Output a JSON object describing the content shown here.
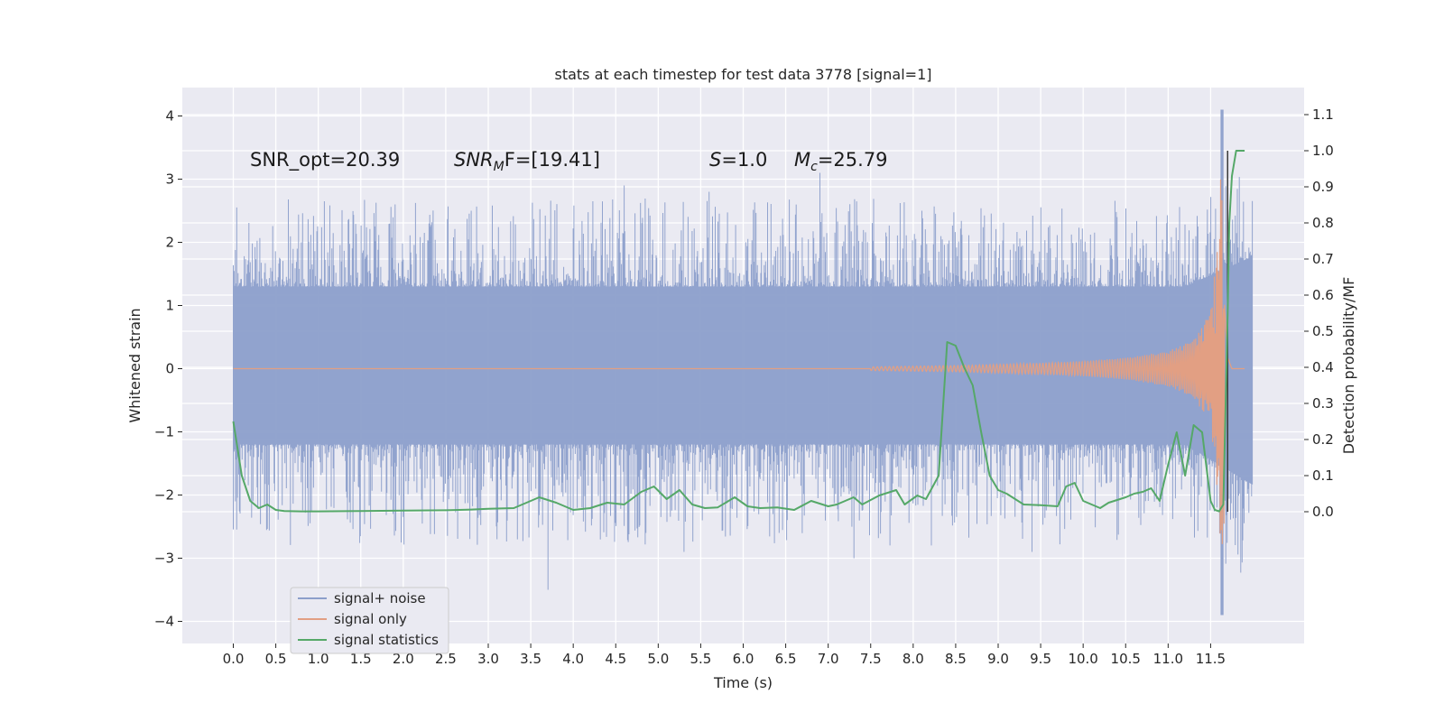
{
  "chart_data": {
    "type": "line",
    "title": "stats at each timestep for test data 3778 [signal=1]",
    "xlabel": "Time (s)",
    "ylabel": "Whitened strain",
    "ylabel_right": "Detection probability/MF",
    "xlim": [
      -0.6,
      12.6
    ],
    "ylim": [
      -4.35,
      4.45
    ],
    "ylim_right": [
      -0.365,
      1.175
    ],
    "x_ticks": [
      0.0,
      0.5,
      1.0,
      1.5,
      2.0,
      2.5,
      3.0,
      3.5,
      4.0,
      4.5,
      5.0,
      5.5,
      6.0,
      6.5,
      7.0,
      7.5,
      8.0,
      8.5,
      9.0,
      9.5,
      10.0,
      10.5,
      11.0,
      11.5
    ],
    "x_tick_labels": [
      "0.0",
      "0.5",
      "1.0",
      "1.5",
      "2.0",
      "2.5",
      "3.0",
      "3.5",
      "4.0",
      "4.5",
      "5.0",
      "5.5",
      "6.0",
      "6.5",
      "7.0",
      "7.5",
      "8.0",
      "8.5",
      "9.0",
      "9.5",
      "10.0",
      "10.5",
      "11.0",
      "11.5"
    ],
    "y_ticks": [
      -4,
      -3,
      -2,
      -1,
      0,
      1,
      2,
      3,
      4
    ],
    "y_tick_labels": [
      "−4",
      "−3",
      "−2",
      "−1",
      "0",
      "1",
      "2",
      "3",
      "4"
    ],
    "y_right_ticks": [
      0.0,
      0.1,
      0.2,
      0.3,
      0.4,
      0.5,
      0.6,
      0.7,
      0.8,
      0.9,
      1.0,
      1.1
    ],
    "y_right_tick_labels": [
      "0.0",
      "0.1",
      "0.2",
      "0.3",
      "0.4",
      "0.5",
      "0.6",
      "0.7",
      "0.8",
      "0.9",
      "1.0",
      "1.1"
    ],
    "grid": true,
    "legend_position": "bottom-left",
    "annotations": {
      "snr_opt": "SNR_opt=20.39",
      "snr_mf_symbol": "SNR",
      "snr_mf_sub": "M",
      "snr_mf_rest": "F=[19.41]",
      "s_symbol": "S",
      "s_rest": "=1.0",
      "mc_symbol": "M",
      "mc_sub": "c",
      "mc_rest": "=25.79"
    },
    "series": [
      {
        "name": "signal+ noise",
        "axis": "left",
        "color": "#8c9fcb",
        "style": "dense noise band roughly between -1.2 and 1.3 with spikes up to ~2.9 and down to ~-3.5; max spike 4.1 near t=11.63",
        "x_range": [
          0.0,
          11.99
        ],
        "envelope_peaks": {
          "x": [
            0.75,
            1.9,
            2.8,
            3.7,
            4.6,
            5.3,
            5.6,
            6.9,
            7.3,
            8.1,
            9.4,
            10.4,
            11.63,
            11.65
          ],
          "y": [
            1.9,
            2.6,
            2.5,
            -3.5,
            2.9,
            -2.9,
            2.8,
            3.1,
            -3.0,
            2.5,
            -2.9,
            2.4,
            4.1,
            -3.9
          ]
        }
      },
      {
        "name": "signal only",
        "axis": "left",
        "color": "#e29f83",
        "style": "chirp: oscillation with growing amplitude and frequency, merger near t=11.6",
        "x": [
          7.5,
          8.5,
          9.5,
          10.0,
          10.5,
          11.0,
          11.3,
          11.5,
          11.6,
          11.63,
          11.67,
          11.7,
          11.75
        ],
        "amplitude": [
          0.03,
          0.05,
          0.09,
          0.12,
          0.17,
          0.28,
          0.45,
          0.9,
          2.2,
          3.6,
          2.0,
          0.4,
          0.0
        ]
      },
      {
        "name": "signal statistics",
        "axis": "right",
        "color": "#55a868",
        "x": [
          0.0,
          0.1,
          0.2,
          0.3,
          0.4,
          0.5,
          0.6,
          0.8,
          1.0,
          1.5,
          2.0,
          2.5,
          2.8,
          3.0,
          3.3,
          3.6,
          3.8,
          4.0,
          4.2,
          4.4,
          4.6,
          4.8,
          4.95,
          5.1,
          5.25,
          5.4,
          5.55,
          5.7,
          5.9,
          6.05,
          6.2,
          6.4,
          6.6,
          6.8,
          7.0,
          7.1,
          7.3,
          7.4,
          7.6,
          7.8,
          7.9,
          8.05,
          8.15,
          8.3,
          8.4,
          8.5,
          8.6,
          8.7,
          8.8,
          8.9,
          9.0,
          9.1,
          9.3,
          9.5,
          9.7,
          9.8,
          9.9,
          10.0,
          10.2,
          10.3,
          10.5,
          10.6,
          10.7,
          10.8,
          10.9,
          11.0,
          11.1,
          11.2,
          11.3,
          11.4,
          11.5,
          11.55,
          11.6,
          11.65,
          11.7,
          11.72,
          11.75,
          11.8,
          11.9
        ],
        "y": [
          0.25,
          0.1,
          0.03,
          0.01,
          0.02,
          0.005,
          0.002,
          0.001,
          0.001,
          0.002,
          0.003,
          0.004,
          0.006,
          0.008,
          0.01,
          0.04,
          0.025,
          0.005,
          0.01,
          0.025,
          0.02,
          0.055,
          0.07,
          0.035,
          0.06,
          0.02,
          0.01,
          0.012,
          0.04,
          0.015,
          0.01,
          0.012,
          0.005,
          0.03,
          0.015,
          0.02,
          0.04,
          0.02,
          0.045,
          0.06,
          0.02,
          0.045,
          0.035,
          0.1,
          0.47,
          0.46,
          0.4,
          0.35,
          0.22,
          0.1,
          0.06,
          0.05,
          0.02,
          0.018,
          0.015,
          0.07,
          0.08,
          0.03,
          0.01,
          0.025,
          0.04,
          0.05,
          0.055,
          0.065,
          0.03,
          0.13,
          0.22,
          0.1,
          0.24,
          0.22,
          0.03,
          0.005,
          0.001,
          0.02,
          0.55,
          0.8,
          0.93,
          1.0,
          1.0
        ]
      }
    ],
    "vertical_line": {
      "color": "#3a3a3a",
      "x": 11.7,
      "y_right_range": [
        0.0,
        1.0
      ]
    }
  }
}
